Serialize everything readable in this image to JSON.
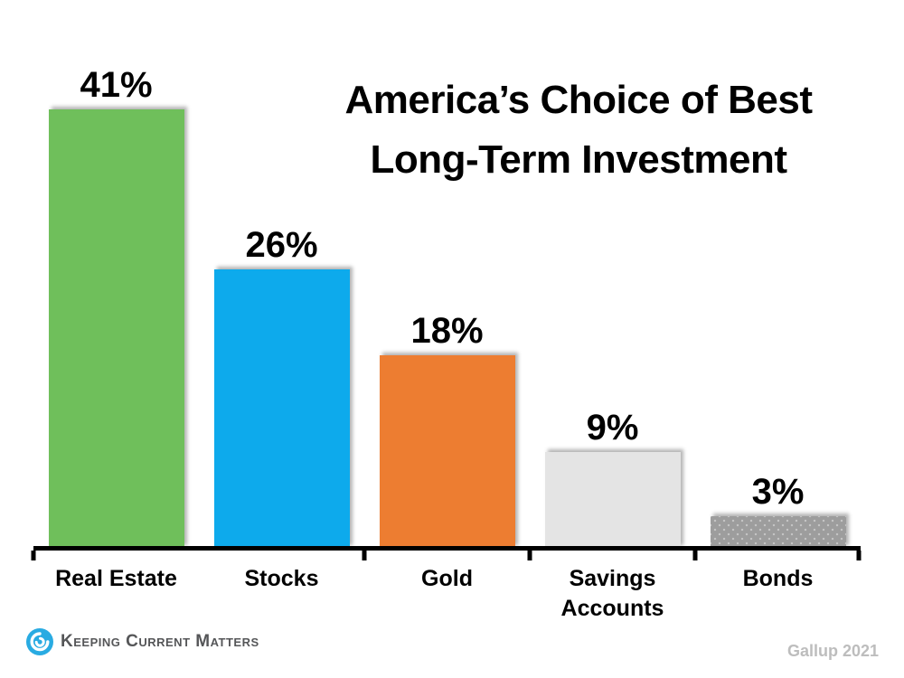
{
  "chart_data": {
    "type": "bar",
    "title": "America’s Choice of Best Long-Term Investment",
    "title_lines": [
      "America’s Choice of Best",
      "Long-Term Investment"
    ],
    "categories": [
      "Real Estate",
      "Stocks",
      "Gold",
      "Savings Accounts",
      "Bonds"
    ],
    "values": [
      41,
      26,
      18,
      9,
      3
    ],
    "value_labels": [
      "41%",
      "26%",
      "18%",
      "9%",
      "3%"
    ],
    "colors": [
      "#6FBF5B",
      "#0DAAEC",
      "#ED7D31",
      "#E4E4E4",
      "#9D9D9D"
    ],
    "patterns": [
      null,
      null,
      null,
      null,
      "dots"
    ],
    "xlabel": "",
    "ylabel": "",
    "ylim": [
      0,
      45
    ],
    "grid": false,
    "legend": false,
    "source": "Gallup 2021"
  },
  "footer": {
    "brand_name": "Keeping Current Matters",
    "source_label": "Gallup 2021",
    "brand_color": "#29ABE2"
  }
}
